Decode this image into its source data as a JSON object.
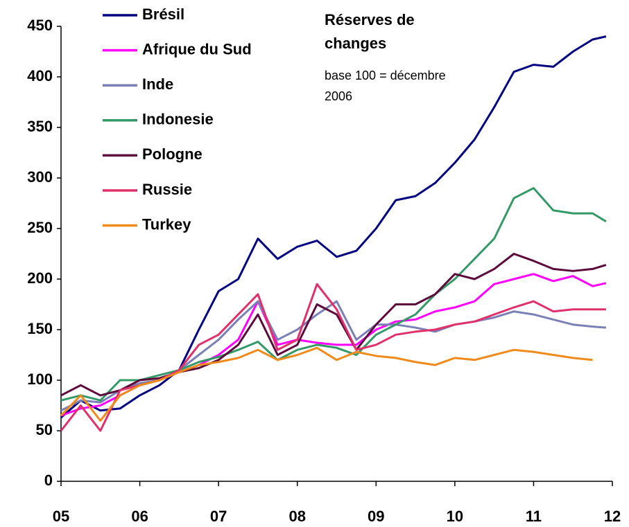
{
  "chart_data": {
    "type": "line",
    "title": "Réserves de changes",
    "subtitle": "base 100 = décembre 2006",
    "x": [
      5,
      5.25,
      5.5,
      5.75,
      6,
      6.25,
      6.5,
      6.75,
      7,
      7.25,
      7.5,
      7.75,
      8,
      8.25,
      8.5,
      8.75,
      9,
      9.25,
      9.5,
      9.75,
      10,
      10.25,
      10.5,
      10.75,
      11,
      11.25,
      11.5,
      11.75,
      11.92
    ],
    "series": [
      {
        "name": "Brésil",
        "color": "#000080",
        "values": [
          63,
          80,
          70,
          72,
          85,
          95,
          110,
          150,
          188,
          200,
          240,
          220,
          232,
          238,
          222,
          228,
          250,
          278,
          282,
          295,
          315,
          338,
          370,
          405,
          412,
          410,
          425,
          437,
          440
        ]
      },
      {
        "name": "Afrique du Sud",
        "color": "#ff00ff",
        "values": [
          65,
          72,
          75,
          85,
          95,
          100,
          108,
          115,
          125,
          140,
          178,
          135,
          140,
          137,
          135,
          135,
          150,
          158,
          160,
          168,
          172,
          178,
          195,
          200,
          205,
          198,
          203,
          193,
          196
        ]
      },
      {
        "name": "Inde",
        "color": "#7a7fb5",
        "values": [
          70,
          80,
          78,
          90,
          97,
          100,
          110,
          125,
          140,
          160,
          178,
          140,
          150,
          165,
          178,
          140,
          155,
          155,
          152,
          148,
          155,
          158,
          162,
          168,
          165,
          160,
          155,
          153,
          152
        ]
      },
      {
        "name": "Indonesie",
        "color": "#339966",
        "values": [
          80,
          85,
          80,
          100,
          100,
          105,
          110,
          118,
          123,
          130,
          138,
          120,
          130,
          135,
          132,
          125,
          145,
          155,
          165,
          185,
          200,
          220,
          240,
          280,
          290,
          268,
          265,
          265,
          257
        ]
      },
      {
        "name": "Pologne",
        "color": "#5c0a3c",
        "values": [
          85,
          95,
          85,
          90,
          100,
          102,
          108,
          112,
          120,
          135,
          165,
          125,
          135,
          175,
          165,
          130,
          155,
          175,
          175,
          185,
          205,
          200,
          210,
          225,
          218,
          210,
          208,
          210,
          214
        ]
      },
      {
        "name": "Russie",
        "color": "#e0306a",
        "values": [
          50,
          75,
          50,
          90,
          95,
          100,
          110,
          135,
          145,
          165,
          185,
          130,
          140,
          195,
          170,
          130,
          135,
          145,
          148,
          150,
          155,
          158,
          165,
          172,
          178,
          168,
          170,
          170,
          170
        ]
      },
      {
        "name": "Turkey",
        "color": "#f08a1a",
        "values": [
          65,
          85,
          60,
          85,
          95,
          100,
          108,
          115,
          118,
          122,
          130,
          120,
          125,
          132,
          120,
          128,
          124,
          122,
          118,
          115,
          122,
          120,
          125,
          130,
          128,
          125,
          122,
          120,
          null
        ]
      }
    ],
    "xlim": [
      5,
      12
    ],
    "xticks": [
      {
        "value": 5,
        "label": "05"
      },
      {
        "value": 6,
        "label": "06"
      },
      {
        "value": 7,
        "label": "07"
      },
      {
        "value": 8,
        "label": "08"
      },
      {
        "value": 9,
        "label": "09"
      },
      {
        "value": 10,
        "label": "10"
      },
      {
        "value": 11,
        "label": "11"
      },
      {
        "value": 12,
        "label": "12"
      }
    ],
    "ylim": [
      0,
      450
    ],
    "yticks": [
      0,
      50,
      100,
      150,
      200,
      250,
      300,
      350,
      400,
      450
    ],
    "legend": "upper left",
    "grid": false
  }
}
